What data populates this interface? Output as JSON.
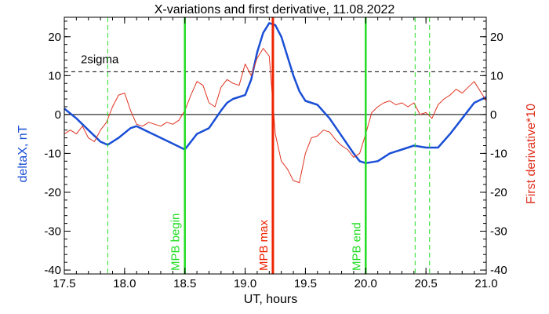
{
  "chart_data": {
    "type": "line",
    "title": "X-variations and first derivative, 11.08.2022",
    "xlabel": "UT, hours",
    "ylabel_left": "deltaX, nT",
    "ylabel_right": "First derivative*10",
    "xlim": [
      17.5,
      21.0
    ],
    "ylim": [
      -41,
      25
    ],
    "x_ticks": [
      17.5,
      18.0,
      18.5,
      19.0,
      19.5,
      20.0,
      20.5,
      21.0
    ],
    "x_tick_labels": [
      "17.5",
      "18.0",
      "18.5",
      "19.0",
      "19.5",
      "20.0",
      "20.5",
      "21.0"
    ],
    "y_ticks": [
      20,
      10,
      0,
      -10,
      -20,
      -30,
      -40
    ],
    "y_tick_labels": [
      "20",
      "10",
      "0",
      "-10",
      "-20",
      "-30",
      "-40"
    ],
    "zero_line": 0,
    "threshold": {
      "value": 11,
      "label": "2sigma"
    },
    "colors": {
      "deltaX": "#1a4fd6",
      "derivative": "#e0321f",
      "mpb_edges": "#22dd22",
      "mpb_max": "#ee2200",
      "axes": "#000000"
    },
    "markers": [
      {
        "x": 18.5,
        "label": "MPB begin",
        "style": "solid",
        "color": "#22dd22"
      },
      {
        "x": 19.23,
        "label": "MPB max",
        "style": "solid",
        "color": "#ee2200"
      },
      {
        "x": 20.0,
        "label": "MPB end",
        "style": "solid",
        "color": "#22dd22"
      }
    ],
    "dashed_markers": [
      17.86,
      20.41,
      20.53
    ],
    "series": [
      {
        "name": "deltaX, nT",
        "color": "#1a4fd6",
        "x": [
          17.5,
          17.6,
          17.7,
          17.8,
          17.86,
          17.95,
          18.05,
          18.1,
          18.2,
          18.3,
          18.4,
          18.5,
          18.6,
          18.7,
          18.8,
          18.85,
          18.9,
          19.0,
          19.05,
          19.1,
          19.15,
          19.2,
          19.25,
          19.3,
          19.35,
          19.4,
          19.45,
          19.5,
          19.55,
          19.6,
          19.7,
          19.8,
          19.9,
          19.95,
          20.0,
          20.1,
          20.2,
          20.3,
          20.4,
          20.5,
          20.6,
          20.7,
          20.8,
          20.9,
          21.0
        ],
        "values": [
          1.5,
          -1.0,
          -4.0,
          -7.0,
          -7.8,
          -6.0,
          -3.5,
          -3.0,
          -4.5,
          -6.0,
          -7.5,
          -9.0,
          -5.0,
          -3.5,
          1.0,
          3.0,
          4.0,
          5.0,
          9.0,
          16.0,
          21.0,
          23.5,
          23.0,
          20.0,
          15.0,
          10.0,
          6.0,
          3.5,
          3.0,
          2.5,
          -1.0,
          -5.5,
          -10.0,
          -12.0,
          -12.5,
          -12.0,
          -10.0,
          -9.0,
          -8.0,
          -8.5,
          -8.5,
          -5.0,
          -1.0,
          3.0,
          4.5
        ]
      },
      {
        "name": "First derivative*10",
        "color": "#e0321f",
        "x": [
          17.5,
          17.55,
          17.6,
          17.65,
          17.7,
          17.75,
          17.8,
          17.85,
          17.9,
          17.95,
          18.0,
          18.05,
          18.1,
          18.15,
          18.2,
          18.25,
          18.3,
          18.35,
          18.4,
          18.45,
          18.5,
          18.55,
          18.6,
          18.65,
          18.7,
          18.75,
          18.8,
          18.85,
          18.9,
          18.95,
          19.0,
          19.05,
          19.1,
          19.15,
          19.2,
          19.25,
          19.3,
          19.35,
          19.4,
          19.45,
          19.5,
          19.55,
          19.6,
          19.65,
          19.7,
          19.75,
          19.8,
          19.85,
          19.9,
          19.95,
          20.0,
          20.05,
          20.1,
          20.15,
          20.2,
          20.25,
          20.3,
          20.35,
          20.4,
          20.45,
          20.5,
          20.55,
          20.6,
          20.65,
          20.7,
          20.75,
          20.8,
          20.85,
          20.9,
          20.95,
          21.0
        ],
        "values": [
          -5.0,
          -4.0,
          -5.0,
          -3.0,
          -6.0,
          -7.0,
          -4.0,
          -2.0,
          2.0,
          5.0,
          5.5,
          1.0,
          -2.5,
          -3.0,
          -2.0,
          -2.5,
          -3.0,
          -2.0,
          -2.5,
          -1.5,
          1.0,
          5.0,
          8.5,
          7.5,
          3.0,
          2.0,
          7.0,
          9.0,
          8.0,
          7.5,
          13.0,
          10.0,
          14.5,
          17.0,
          15.0,
          -5.0,
          -12.0,
          -14.0,
          -17.0,
          -17.5,
          -10.0,
          -6.0,
          -5.5,
          -4.0,
          -4.5,
          -6.5,
          -8.0,
          -9.0,
          -11.0,
          -10.0,
          -5.0,
          0.5,
          2.0,
          3.0,
          3.5,
          2.5,
          3.0,
          2.0,
          3.0,
          0.0,
          0.5,
          -1.0,
          2.5,
          4.0,
          5.0,
          6.5,
          5.5,
          7.0,
          8.5,
          6.0,
          3.5
        ]
      }
    ]
  }
}
